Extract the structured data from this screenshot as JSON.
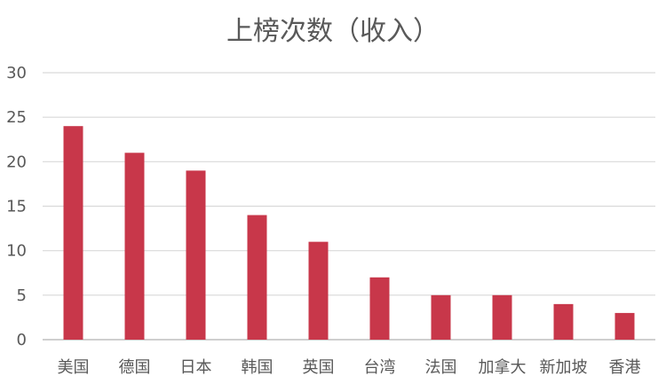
{
  "chart_data": {
    "type": "bar",
    "title": "上榜次数（收入）",
    "categories": [
      "美国",
      "德国",
      "日本",
      "韩国",
      "英国",
      "台湾",
      "法国",
      "加拿大",
      "新加坡",
      "香港"
    ],
    "values": [
      24,
      21,
      19,
      14,
      11,
      7,
      5,
      5,
      4,
      3
    ],
    "xlabel": "",
    "ylabel": "",
    "ylim": [
      0,
      30
    ],
    "yticks": [
      0,
      5,
      10,
      15,
      20,
      25,
      30
    ],
    "grid": true,
    "legend": "none",
    "bar_color": "#c8374a"
  }
}
